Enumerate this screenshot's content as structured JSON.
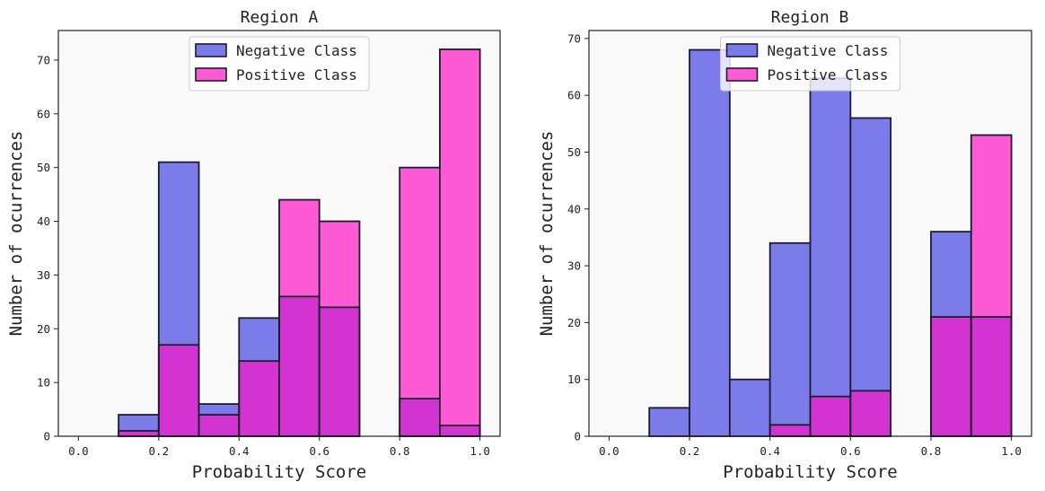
{
  "colors": {
    "negative": "#7b7bea",
    "positive": "#ff5ad6",
    "overlap": "#d334d1",
    "plot_bg": "#f9f9f9",
    "edge": "#1c1c2e"
  },
  "chart_data": [
    {
      "type": "bar",
      "title": "Region A",
      "xlabel": "Probability Score",
      "ylabel": "Number of ocurrences",
      "bin_edges": [
        0.0,
        0.1,
        0.2,
        0.3,
        0.4,
        0.5,
        0.6,
        0.7,
        0.8,
        0.9,
        1.0
      ],
      "xlim": [
        -0.05,
        1.05
      ],
      "ylim": [
        0,
        75.5
      ],
      "xticks": [
        "0.0",
        "0.2",
        "0.4",
        "0.6",
        "0.8",
        "1.0"
      ],
      "yticks": [
        "0",
        "10",
        "20",
        "30",
        "40",
        "50",
        "60",
        "70"
      ],
      "legend_position": "top-center",
      "series": [
        {
          "name": "Negative Class",
          "values": [
            0,
            4,
            51,
            6,
            22,
            26,
            24,
            0,
            7,
            2
          ]
        },
        {
          "name": "Positive Class",
          "values": [
            0,
            1,
            17,
            4,
            14,
            44,
            40,
            0,
            50,
            72
          ]
        }
      ]
    },
    {
      "type": "bar",
      "title": "Region B",
      "xlabel": "Probability Score",
      "ylabel": "Number of ocurrences",
      "bin_edges": [
        0.0,
        0.1,
        0.2,
        0.3,
        0.4,
        0.5,
        0.6,
        0.7,
        0.8,
        0.9,
        1.0
      ],
      "xlim": [
        -0.05,
        1.05
      ],
      "ylim": [
        0,
        71.4
      ],
      "xticks": [
        "0.0",
        "0.2",
        "0.4",
        "0.6",
        "0.8",
        "1.0"
      ],
      "yticks": [
        "0",
        "10",
        "20",
        "30",
        "40",
        "50",
        "60",
        "70"
      ],
      "legend_position": "top-center",
      "series": [
        {
          "name": "Negative Class",
          "values": [
            0,
            5,
            68,
            10,
            34,
            63,
            56,
            0,
            36,
            21
          ]
        },
        {
          "name": "Positive Class",
          "values": [
            0,
            0,
            0,
            0,
            2,
            7,
            8,
            0,
            21,
            53
          ]
        }
      ]
    }
  ]
}
